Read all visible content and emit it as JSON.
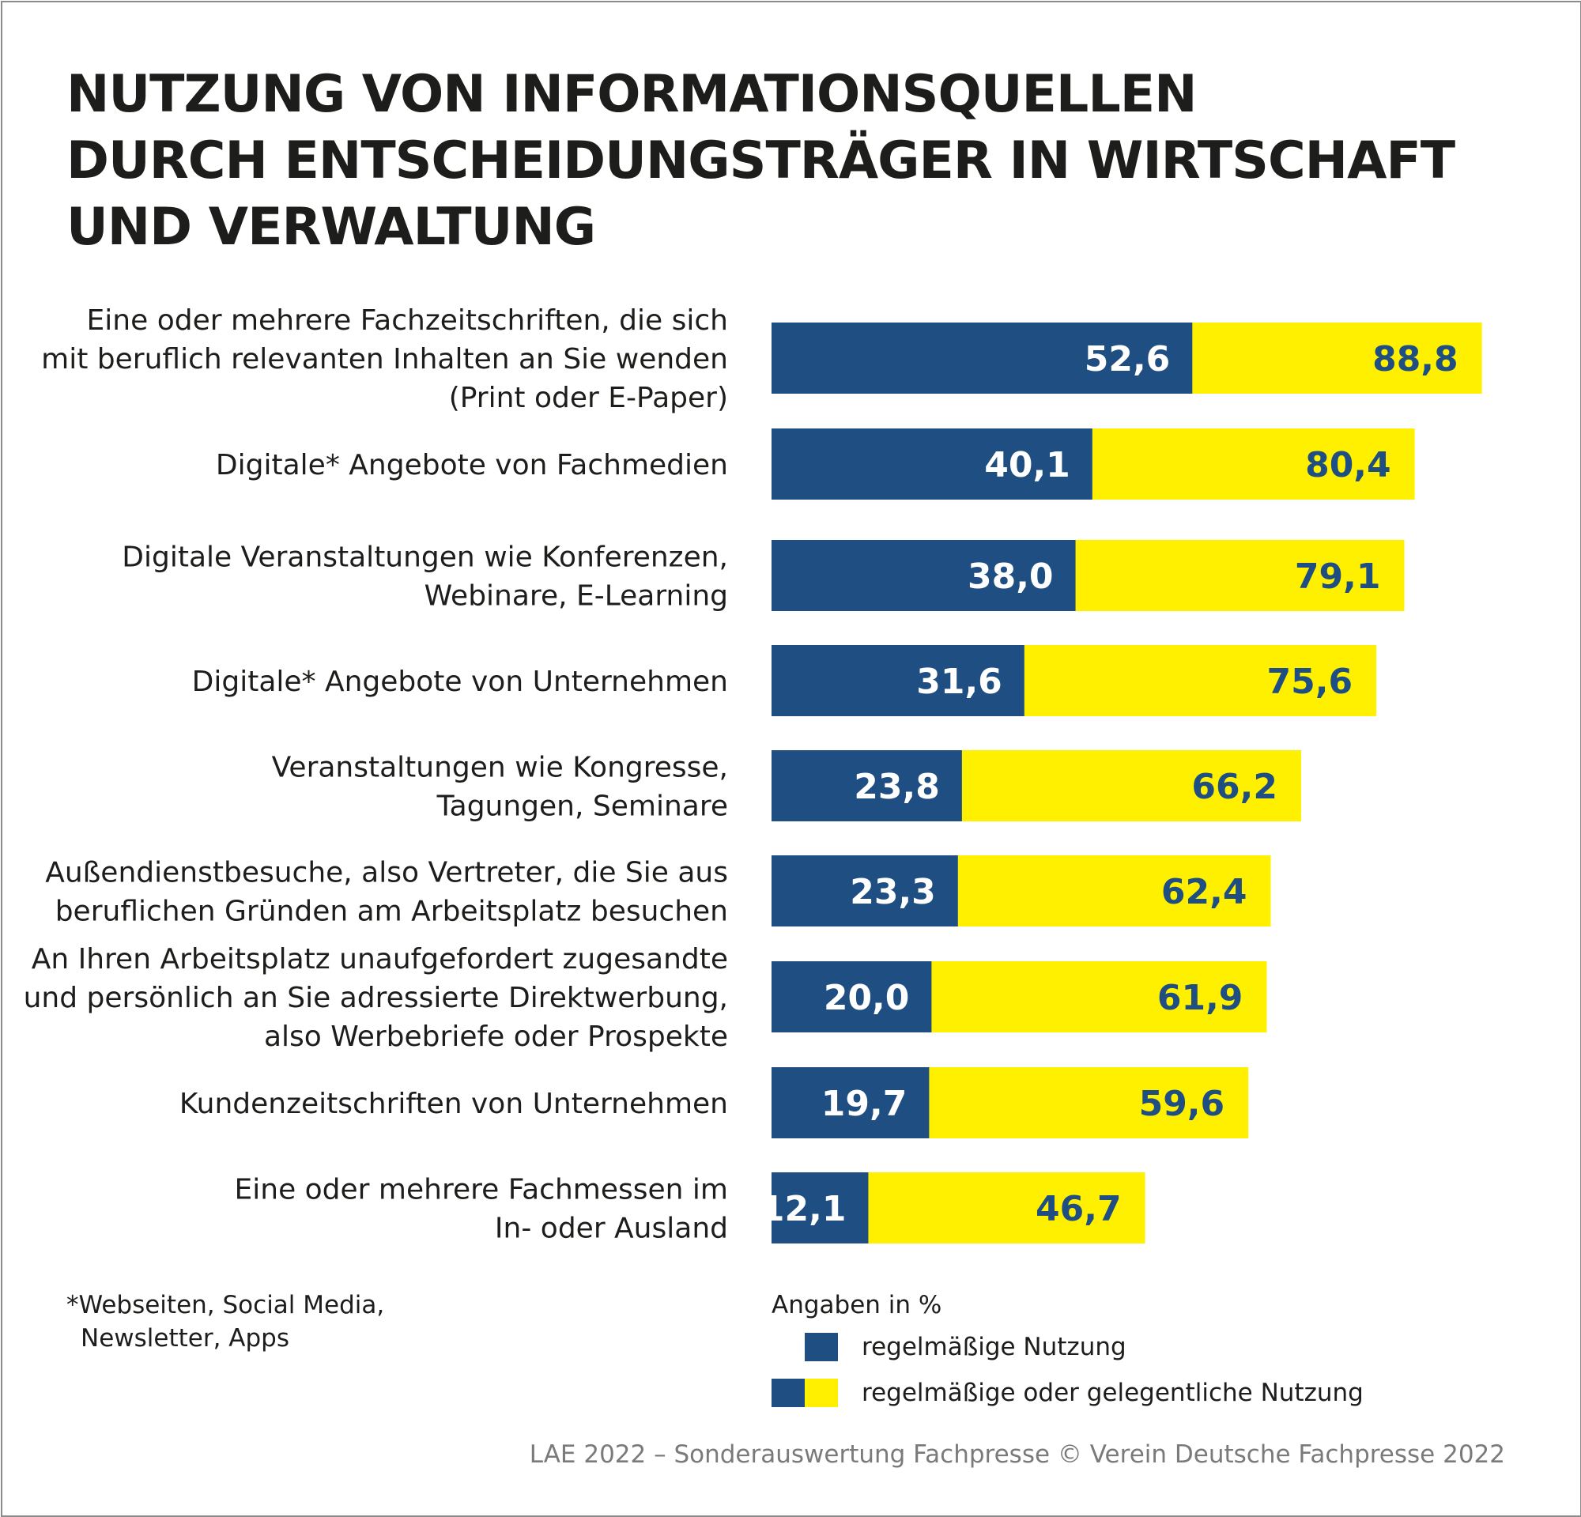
{
  "title_lines": [
    "NUTZUNG VON INFORMATIONSQUELLEN",
    "DURCH ENTSCHEIDUNGSTRÄGER IN WIRTSCHAFT",
    "UND VERWALTUNG"
  ],
  "colors": {
    "regular": "#1f4e82",
    "occasional": "#fff000",
    "regular_text": "#ffffff",
    "occasional_text": "#1f4e82"
  },
  "chart_data": {
    "type": "bar",
    "orientation": "horizontal",
    "title": "NUTZUNG VON INFORMATIONSQUELLEN DURCH ENTSCHEIDUNGSTRÄGER IN WIRTSCHAFT UND VERWALTUNG",
    "unit_note": "Angaben in %",
    "xlim": [
      0,
      100
    ],
    "grid": false,
    "legend_position": "bottom",
    "categories": [
      [
        "Eine oder mehrere Fachzeitschriften, die sich",
        "mit beruflich relevanten Inhalten an Sie wenden",
        "(Print oder E-Paper)"
      ],
      [
        "Digitale* Angebote von Fachmedien"
      ],
      [
        "Digitale Veranstaltungen wie Konferenzen,",
        "Webinare, E-Learning"
      ],
      [
        "Digitale* Angebote von Unternehmen"
      ],
      [
        "Veranstaltungen wie Kongresse,",
        "Tagungen, Seminare"
      ],
      [
        "Außendienstbesuche, also Vertreter, die Sie aus",
        "beruflichen Gründen am Arbeitsplatz besuchen"
      ],
      [
        "An Ihren Arbeitsplatz unaufgefordert zugesandte",
        "und persönlich an Sie adressierte Direktwerbung,",
        "also Werbebriefe oder Prospekte"
      ],
      [
        "Kundenzeitschriften von Unternehmen"
      ],
      [
        "Eine oder mehrere Fachmessen im",
        "In- oder Ausland"
      ]
    ],
    "series": [
      {
        "name": "regelmäßige Nutzung",
        "values": [
          52.6,
          40.1,
          38.0,
          31.6,
          23.8,
          23.3,
          20.0,
          19.7,
          12.1
        ],
        "labels": [
          "52,6",
          "40,1",
          "38,0",
          "31,6",
          "23,8",
          "23,3",
          "20,0",
          "19,7",
          "12,1"
        ]
      },
      {
        "name": "regelmäßige oder gelegentliche Nutzung",
        "values": [
          88.8,
          80.4,
          79.1,
          75.6,
          66.2,
          62.4,
          61.9,
          59.6,
          46.7
        ],
        "labels": [
          "88,8",
          "80,4",
          "79,1",
          "75,6",
          "66,2",
          "62,4",
          "61,9",
          "59,6",
          "46,7"
        ]
      }
    ]
  },
  "footnote_lines": [
    "*Webseiten, Social Media,",
    "Newsletter, Apps"
  ],
  "legend": {
    "unit": "Angaben in %",
    "regular": "regelmäßige Nutzung",
    "combined": "regelmäßige oder gelegentliche Nutzung"
  },
  "source": "LAE 2022 – Sonderauswertung Fachpresse © Verein Deutsche Fachpresse 2022"
}
